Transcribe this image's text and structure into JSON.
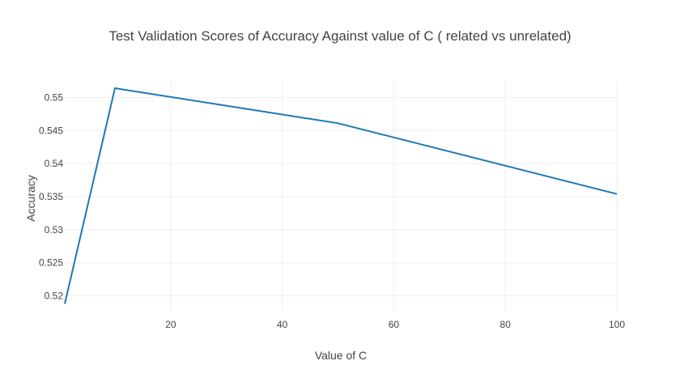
{
  "chart_data": {
    "type": "line",
    "title": "Test Validation Scores of Accuracy Against value of C  ( related vs unrelated)",
    "xlabel": "Value of C",
    "ylabel": "Accuracy",
    "xlim": [
      1,
      100
    ],
    "ylim": [
      0.5175,
      0.5525
    ],
    "xticks": [
      20,
      40,
      60,
      80,
      100
    ],
    "yticks": [
      0.52,
      0.525,
      0.53,
      0.535,
      0.54,
      0.545,
      0.55
    ],
    "ytick_labels": [
      "0.52",
      "0.525",
      "0.53",
      "0.535",
      "0.54",
      "0.545",
      "0.55"
    ],
    "grid": true,
    "series": [
      {
        "x": [
          1,
          10,
          50,
          100
        ],
        "y": [
          0.5188,
          0.5514,
          0.5461,
          0.5354
        ],
        "color": "#1f77b4"
      }
    ]
  }
}
